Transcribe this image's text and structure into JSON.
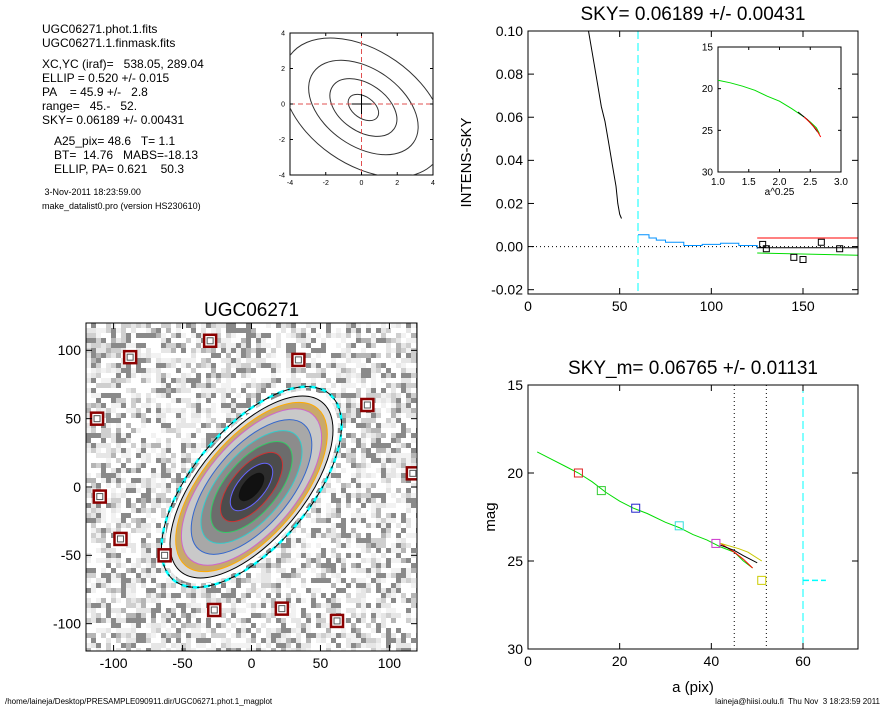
{
  "info": {
    "phot_file": "UGC06271.phot.1.fits",
    "mask_file": "UGC06271.1.finmask.fits",
    "xcyc": "XC,YC (iraf)=   538.05, 289.04",
    "ellip": "ELLIP = 0.520 +/- 0.015",
    "pa": "PA    = 45.9 +/-   2.8",
    "range": "range=   45.-   52.",
    "sky": "SKY= 0.06189 +/- 0.00431",
    "a25": "A25_pix= 48.6   T= 1.1",
    "bt": "BT=  14.76   MABS=-18.13",
    "ellip_pa": "ELLIP, PA= 0.621    50.3",
    "date": " 3-Nov-2011 18:23:59.00",
    "program": "make_datalist0.pro (version HS230610)"
  },
  "footer": {
    "left": "/home/laineja/Desktop/PRESAMPLE090911.dir/UGC06271.phot.1_magplot",
    "right": "laineja@hiisi.oulu.fi  Thu Nov  3 18:23:59 2011"
  },
  "colors": {
    "sky_line": "#00ffff",
    "red": "#ff0000",
    "green": "#00dd00",
    "blue": "#0000cc",
    "sky_profile": "#0090ff",
    "box": "#8b0000"
  },
  "chart_data": [
    {
      "id": "contour",
      "type": "contour",
      "xlim": [
        -4,
        4
      ],
      "ylim": [
        -4,
        4
      ],
      "xticks": [
        -4,
        -2,
        0,
        2,
        4
      ],
      "yticks": [
        -4,
        -2,
        0,
        2,
        4
      ],
      "center": [
        0,
        0
      ],
      "contour_scales": [
        1.0,
        2.2,
        3.6,
        5.3
      ]
    },
    {
      "id": "sky",
      "type": "line",
      "title": "SKY= 0.06189 +/- 0.00431",
      "ylabel": "INTENS-SKY",
      "xlim": [
        0,
        180
      ],
      "ylim": [
        -0.022,
        0.1
      ],
      "xticks": [
        0,
        50,
        100,
        150
      ],
      "yticks": [
        -0.02,
        0.0,
        0.02,
        0.04,
        0.06,
        0.08,
        0.1
      ],
      "ytick_labels": [
        "-0.02",
        "0.00",
        "0.02",
        "0.04",
        "0.06",
        "0.08",
        "0.10"
      ],
      "vline_x": 60,
      "profile": [
        [
          33,
          0.1
        ],
        [
          35,
          0.09
        ],
        [
          38,
          0.075
        ],
        [
          40,
          0.065
        ],
        [
          42,
          0.058
        ],
        [
          44,
          0.048
        ],
        [
          46,
          0.038
        ],
        [
          48,
          0.028
        ],
        [
          49,
          0.02
        ],
        [
          50,
          0.015
        ],
        [
          51,
          0.013
        ]
      ],
      "sky_steps": [
        [
          60,
          0.0055
        ],
        [
          66,
          0.004
        ],
        [
          70,
          0.003
        ],
        [
          75,
          0.002
        ],
        [
          85,
          0.0005
        ],
        [
          95,
          0.001
        ],
        [
          105,
          0.0015
        ],
        [
          115,
          0.0005
        ],
        [
          125,
          -0.001
        ]
      ],
      "squares": [
        [
          128,
          0.001
        ],
        [
          130,
          -0.001
        ],
        [
          145,
          -0.005
        ],
        [
          150,
          -0.006
        ],
        [
          160,
          0.002
        ],
        [
          170,
          -0.001
        ]
      ],
      "red_line": [
        [
          125,
          0.004
        ],
        [
          180,
          0.004
        ]
      ],
      "black_line": [
        [
          125,
          -0.0005
        ],
        [
          180,
          -0.0005
        ]
      ],
      "green_line": [
        [
          125,
          -0.003
        ],
        [
          180,
          -0.004
        ]
      ],
      "inset": {
        "xlabel": "a^0.25",
        "xlim": [
          1.0,
          3.0
        ],
        "ylim": [
          30,
          15
        ],
        "xticks": [
          1.0,
          1.5,
          2.0,
          2.5,
          3.0
        ],
        "xtick_labels": [
          "1.0",
          "1.5",
          "2.0",
          "2.5",
          "3.0"
        ],
        "yticks": [
          15,
          20,
          25,
          30
        ],
        "green": [
          [
            1.0,
            19.0
          ],
          [
            1.2,
            19.3
          ],
          [
            1.4,
            19.7
          ],
          [
            1.6,
            20.2
          ],
          [
            1.8,
            20.9
          ],
          [
            2.0,
            21.5
          ],
          [
            2.2,
            22.4
          ],
          [
            2.4,
            23.4
          ],
          [
            2.5,
            24.0
          ],
          [
            2.6,
            24.7
          ],
          [
            2.65,
            25.4
          ]
        ],
        "black": [
          [
            2.3,
            22.8
          ],
          [
            2.45,
            23.7
          ],
          [
            2.55,
            24.5
          ],
          [
            2.62,
            25.2
          ]
        ],
        "red": [
          [
            2.4,
            23.4
          ],
          [
            2.5,
            24.1
          ],
          [
            2.6,
            24.9
          ],
          [
            2.67,
            25.8
          ]
        ]
      }
    },
    {
      "id": "image",
      "type": "image",
      "title": "UGC06271",
      "xlim": [
        -120,
        120
      ],
      "ylim": [
        -120,
        120
      ],
      "xticks": [
        -100,
        -50,
        0,
        50,
        100
      ],
      "yticks": [
        -100,
        -50,
        0,
        50,
        100
      ],
      "ellipse": {
        "a": 80,
        "b": 38,
        "pa_deg": -50
      },
      "masked_sources": [
        [
          -88,
          95
        ],
        [
          -30,
          107
        ],
        [
          34,
          93
        ],
        [
          -112,
          50
        ],
        [
          84,
          60
        ],
        [
          -110,
          -7
        ],
        [
          117,
          10
        ],
        [
          -95,
          -38
        ],
        [
          -63,
          -50
        ],
        [
          -27,
          -90
        ],
        [
          22,
          -89
        ],
        [
          62,
          -98
        ]
      ]
    },
    {
      "id": "mag",
      "type": "line",
      "title": "SKY_m=  0.06765 +/- 0.01131",
      "xlabel": "a (pix)",
      "ylabel": "mag",
      "xlim": [
        0,
        72
      ],
      "ylim": [
        30,
        15
      ],
      "xticks": [
        0,
        20,
        40,
        60
      ],
      "yticks": [
        15,
        20,
        25,
        30
      ],
      "vlines_dotted": [
        45,
        52
      ],
      "vline_dashed": 60,
      "profile": [
        [
          2,
          18.8
        ],
        [
          5,
          19.2
        ],
        [
          8,
          19.6
        ],
        [
          11,
          20.0
        ],
        [
          14,
          20.5
        ],
        [
          17,
          21.1
        ],
        [
          20,
          21.6
        ],
        [
          23,
          22.0
        ],
        [
          26,
          22.3
        ],
        [
          30,
          22.8
        ],
        [
          33,
          23.1
        ],
        [
          36,
          23.5
        ],
        [
          39,
          23.8
        ],
        [
          42,
          24.2
        ],
        [
          45,
          24.5
        ],
        [
          47,
          25.0
        ],
        [
          49,
          25.4
        ]
      ],
      "profile_variants": [
        [
          [
            42,
            24.0
          ],
          [
            45,
            24.5
          ],
          [
            47,
            24.9
          ],
          [
            49,
            25.4
          ]
        ],
        [
          [
            42,
            24.1
          ],
          [
            45,
            24.4
          ],
          [
            47,
            24.7
          ],
          [
            50,
            25.1
          ]
        ],
        [
          [
            42,
            24.0
          ],
          [
            46,
            24.3
          ],
          [
            48,
            24.5
          ],
          [
            51,
            25.0
          ]
        ]
      ],
      "squares": [
        [
          11,
          20.0,
          "red"
        ],
        [
          16,
          21.0,
          "green"
        ],
        [
          23.5,
          22.0,
          "blue"
        ],
        [
          33,
          23.0,
          "cyan"
        ],
        [
          41,
          24.0,
          "magenta"
        ],
        [
          51,
          26.1,
          "yellow"
        ]
      ],
      "sky_segment": [
        [
          60,
          26.1
        ],
        [
          65,
          26.1
        ]
      ]
    }
  ]
}
